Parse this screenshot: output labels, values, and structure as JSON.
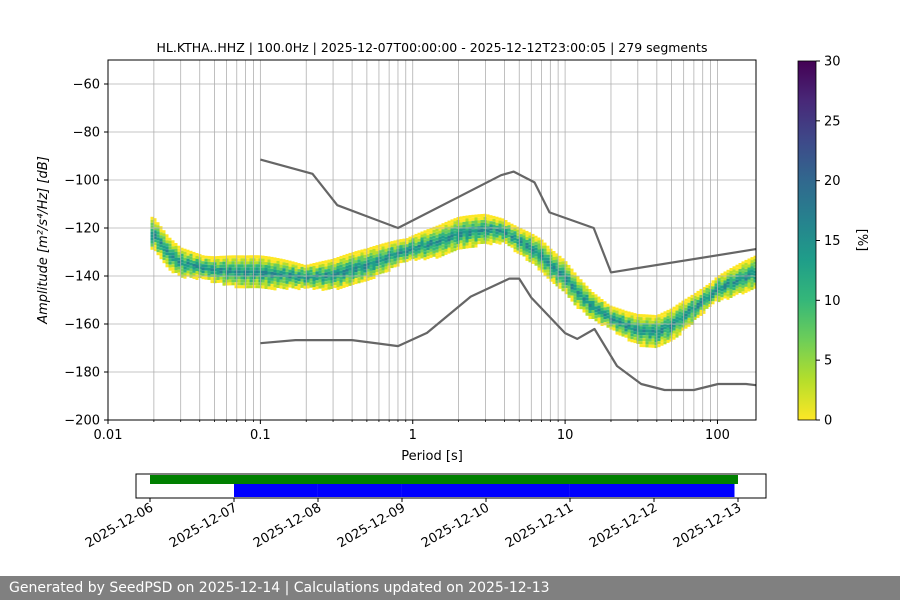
{
  "chart_data": [
    {
      "type": "heatmap",
      "title": "HL.KTHA..HHZ | 100.0Hz | 2025-12-07T00:00:00 - 2025-12-12T23:00:05 | 279 segments",
      "xlabel": "Period [s]",
      "ylabel": "Amplitude [m²/s⁴/Hz] [dB]",
      "xscale": "log",
      "xlim": [
        0.01,
        179
      ],
      "ylim": [
        -200,
        -50
      ],
      "grid": true,
      "x_ticks": [
        0.01,
        0.1,
        1,
        10,
        100
      ],
      "x_tick_labels": [
        "0.01",
        "0.1",
        "1",
        "10",
        "100"
      ],
      "y_ticks": [
        -200,
        -180,
        -160,
        -140,
        -120,
        -100,
        -80,
        -60
      ],
      "y_tick_labels": [
        "−200",
        "−180",
        "−160",
        "−140",
        "−120",
        "−100",
        "−80",
        "−60"
      ],
      "mode_curve": {
        "x": [
          0.02,
          0.025,
          0.03,
          0.05,
          0.08,
          0.1,
          0.15,
          0.2,
          0.3,
          0.5,
          0.8,
          1.0,
          1.5,
          2,
          3,
          4,
          5,
          6,
          7,
          8,
          10,
          12,
          15,
          20,
          25,
          30,
          40,
          50,
          70,
          100,
          150,
          179
        ],
        "y": [
          -122,
          -130,
          -134,
          -137,
          -138,
          -138,
          -139,
          -140,
          -139,
          -135,
          -130,
          -128,
          -125,
          -122,
          -120,
          -121,
          -125,
          -128,
          -131,
          -135,
          -140,
          -146,
          -152,
          -157,
          -160,
          -162,
          -163,
          -160,
          -153,
          -145,
          -140,
          -138
        ]
      },
      "nlnm": {
        "x": [
          0.1,
          0.17,
          0.4,
          0.8,
          1.24,
          2.4,
          4.3,
          5,
          6,
          10,
          12,
          15.6,
          21.9,
          31.6,
          45,
          70,
          101,
          154,
          179
        ],
        "y": [
          -168,
          -166.7,
          -166.7,
          -169.2,
          -163.7,
          -148.6,
          -141.1,
          -141.1,
          -149,
          -163.8,
          -166.2,
          -162.1,
          -177.5,
          -185,
          -187.5,
          -187.5,
          -185,
          -185,
          -185.5
        ]
      },
      "nhnm": {
        "x": [
          0.1,
          0.22,
          0.32,
          0.8,
          3.8,
          4.6,
          6.3,
          7.9,
          15.4,
          20,
          179
        ],
        "y": [
          -91.5,
          -97.4,
          -110.5,
          -120,
          -98,
          -96.5,
          -101,
          -113.5,
          -120,
          -138.5,
          -128.8
        ]
      },
      "colorbar": {
        "label": "[%]",
        "min": 0,
        "max": 30,
        "ticks": [
          0,
          5,
          10,
          15,
          20,
          25,
          30
        ],
        "colors": [
          "#fde725",
          "#b5de2b",
          "#6ece58",
          "#35b779",
          "#1f9e89",
          "#26828e",
          "#31688e",
          "#3e4989",
          "#482878",
          "#440154"
        ]
      }
    },
    {
      "type": "timeline",
      "x_tick_labels": [
        "2025-12-06",
        "2025-12-07",
        "2025-12-08",
        "2025-12-09",
        "2025-12-10",
        "2025-12-11",
        "2025-12-12",
        "2025-12-13"
      ],
      "xlim": [
        "2025-12-05T20:00",
        "2025-12-13T08:00"
      ],
      "data_span": {
        "start": "2025-12-06T00:00",
        "end": "2025-12-13T00:00",
        "color": "#008000"
      },
      "psd_segments": [
        {
          "start": "2025-12-07T00:00",
          "end": "2025-12-07T23:59",
          "color": "#0000ff"
        },
        {
          "start": "2025-12-08T00:00",
          "end": "2025-12-08T23:59",
          "color": "#0000ff"
        },
        {
          "start": "2025-12-09T00:00",
          "end": "2025-12-10T23:59",
          "color": "#0000ff"
        },
        {
          "start": "2025-12-11T00:00",
          "end": "2025-12-12T23:00",
          "color": "#0000ff"
        }
      ]
    }
  ],
  "footer": {
    "text": "Generated by SeedPSD on 2025-12-14 | Calculations updated on 2025-12-13",
    "background": "#808080"
  }
}
